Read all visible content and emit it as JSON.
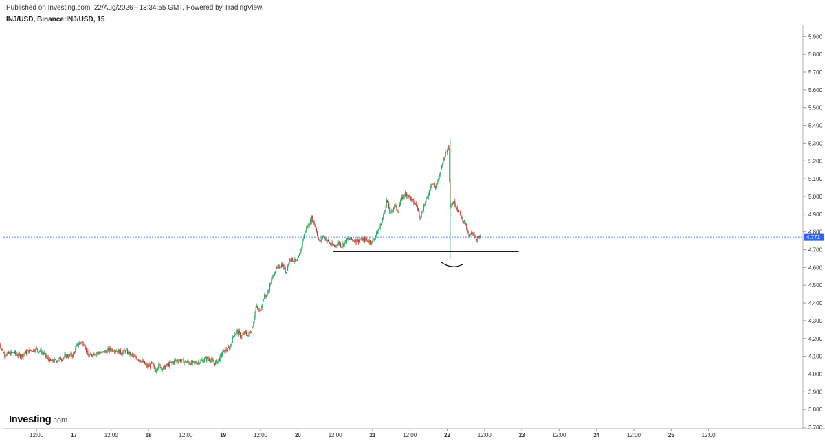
{
  "header": {
    "published": "Published on Investing.com, 22/Aug/2026 - 13:34:55 GMT, Powered by TradingView.",
    "symbol": "INJ/USD, Binance:INJ/USD, 15"
  },
  "logo": {
    "brand": "Investing",
    "tld": ".com"
  },
  "colors": {
    "up": "#26a65b",
    "down": "#c0392b",
    "price_line": "#2962ff",
    "annotation": "#000000"
  },
  "chart_data": {
    "type": "candlestick",
    "interval": "15",
    "ylim": [
      3.7,
      5.95
    ],
    "y_ticks": [
      "5.900",
      "5.800",
      "5.700",
      "5.600",
      "5.500",
      "5.400",
      "5.300",
      "5.200",
      "5.100",
      "5.000",
      "4.900",
      "4.800",
      "4.700",
      "4.600",
      "4.500",
      "4.400",
      "4.300",
      "4.200",
      "4.100",
      "4.000",
      "3.900",
      "3.800",
      "3.700"
    ],
    "x_ticks": [
      {
        "label": "12:00",
        "day": 16.5,
        "bold": false
      },
      {
        "label": "17",
        "day": 17,
        "bold": true
      },
      {
        "label": "12:00",
        "day": 17.5,
        "bold": false
      },
      {
        "label": "18",
        "day": 18,
        "bold": true
      },
      {
        "label": "12:00",
        "day": 18.5,
        "bold": false
      },
      {
        "label": "19",
        "day": 19,
        "bold": true
      },
      {
        "label": "12:00",
        "day": 19.5,
        "bold": false
      },
      {
        "label": "20",
        "day": 20,
        "bold": true
      },
      {
        "label": "12:00",
        "day": 20.5,
        "bold": false
      },
      {
        "label": "21",
        "day": 21,
        "bold": true
      },
      {
        "label": "12:00",
        "day": 21.5,
        "bold": false
      },
      {
        "label": "22",
        "day": 22,
        "bold": true
      },
      {
        "label": "12:00",
        "day": 22.5,
        "bold": false
      },
      {
        "label": "23",
        "day": 23,
        "bold": true
      },
      {
        "label": "12:00",
        "day": 23.5,
        "bold": false
      },
      {
        "label": "24",
        "day": 24,
        "bold": true
      },
      {
        "label": "12:00",
        "day": 24.5,
        "bold": false
      },
      {
        "label": "25",
        "day": 25,
        "bold": true
      },
      {
        "label": "12:00",
        "day": 25.5,
        "bold": false
      }
    ],
    "x_range": [
      16.0,
      26.55
    ],
    "last_price": 4.771,
    "last_price_label": "4.771",
    "support_line": {
      "day_start": 20.47,
      "day_end": 22.96,
      "price": 4.69
    },
    "price_path": [
      [
        16.0,
        4.18
      ],
      [
        16.08,
        4.11
      ],
      [
        16.2,
        4.12
      ],
      [
        16.3,
        4.1
      ],
      [
        16.4,
        4.13
      ],
      [
        16.5,
        4.14
      ],
      [
        16.6,
        4.12
      ],
      [
        16.65,
        4.09
      ],
      [
        16.7,
        4.07
      ],
      [
        16.8,
        4.08
      ],
      [
        16.9,
        4.1
      ],
      [
        17.0,
        4.11
      ],
      [
        17.05,
        4.16
      ],
      [
        17.1,
        4.18
      ],
      [
        17.15,
        4.17
      ],
      [
        17.2,
        4.1
      ],
      [
        17.3,
        4.12
      ],
      [
        17.4,
        4.12
      ],
      [
        17.5,
        4.14
      ],
      [
        17.6,
        4.13
      ],
      [
        17.65,
        4.12
      ],
      [
        17.7,
        4.13
      ],
      [
        17.8,
        4.1
      ],
      [
        17.9,
        4.08
      ],
      [
        18.0,
        4.04
      ],
      [
        18.05,
        4.06
      ],
      [
        18.1,
        4.02
      ],
      [
        18.15,
        4.05
      ],
      [
        18.2,
        4.03
      ],
      [
        18.3,
        4.06
      ],
      [
        18.4,
        4.08
      ],
      [
        18.5,
        4.07
      ],
      [
        18.6,
        4.06
      ],
      [
        18.7,
        4.07
      ],
      [
        18.8,
        4.09
      ],
      [
        18.9,
        4.06
      ],
      [
        18.95,
        4.08
      ],
      [
        19.0,
        4.12
      ],
      [
        19.1,
        4.15
      ],
      [
        19.15,
        4.22
      ],
      [
        19.2,
        4.24
      ],
      [
        19.25,
        4.21
      ],
      [
        19.3,
        4.23
      ],
      [
        19.35,
        4.22
      ],
      [
        19.4,
        4.26
      ],
      [
        19.45,
        4.38
      ],
      [
        19.5,
        4.35
      ],
      [
        19.55,
        4.43
      ],
      [
        19.6,
        4.45
      ],
      [
        19.65,
        4.52
      ],
      [
        19.7,
        4.58
      ],
      [
        19.75,
        4.6
      ],
      [
        19.8,
        4.62
      ],
      [
        19.85,
        4.57
      ],
      [
        19.9,
        4.65
      ],
      [
        19.95,
        4.64
      ],
      [
        20.0,
        4.63
      ],
      [
        20.05,
        4.7
      ],
      [
        20.1,
        4.8
      ],
      [
        20.15,
        4.84
      ],
      [
        20.2,
        4.88
      ],
      [
        20.25,
        4.82
      ],
      [
        20.3,
        4.74
      ],
      [
        20.35,
        4.78
      ],
      [
        20.4,
        4.75
      ],
      [
        20.45,
        4.73
      ],
      [
        20.5,
        4.72
      ],
      [
        20.55,
        4.74
      ],
      [
        20.6,
        4.72
      ],
      [
        20.65,
        4.75
      ],
      [
        20.7,
        4.76
      ],
      [
        20.8,
        4.75
      ],
      [
        20.9,
        4.76
      ],
      [
        21.0,
        4.74
      ],
      [
        21.05,
        4.78
      ],
      [
        21.1,
        4.82
      ],
      [
        21.15,
        4.88
      ],
      [
        21.2,
        4.98
      ],
      [
        21.25,
        4.9
      ],
      [
        21.3,
        4.95
      ],
      [
        21.35,
        4.92
      ],
      [
        21.4,
        4.99
      ],
      [
        21.45,
        5.02
      ],
      [
        21.5,
        5.0
      ],
      [
        21.55,
        4.97
      ],
      [
        21.6,
        4.95
      ],
      [
        21.65,
        4.88
      ],
      [
        21.7,
        4.95
      ],
      [
        21.75,
        5.0
      ],
      [
        21.8,
        5.08
      ],
      [
        21.85,
        5.05
      ],
      [
        21.9,
        5.1
      ],
      [
        21.95,
        5.2
      ],
      [
        22.0,
        5.25
      ],
      [
        22.03,
        5.3
      ],
      [
        22.05,
        4.95
      ],
      [
        22.1,
        4.97
      ],
      [
        22.15,
        4.93
      ],
      [
        22.2,
        4.88
      ],
      [
        22.25,
        4.85
      ],
      [
        22.3,
        4.77
      ],
      [
        22.35,
        4.8
      ],
      [
        22.4,
        4.76
      ],
      [
        22.45,
        4.77
      ]
    ]
  }
}
